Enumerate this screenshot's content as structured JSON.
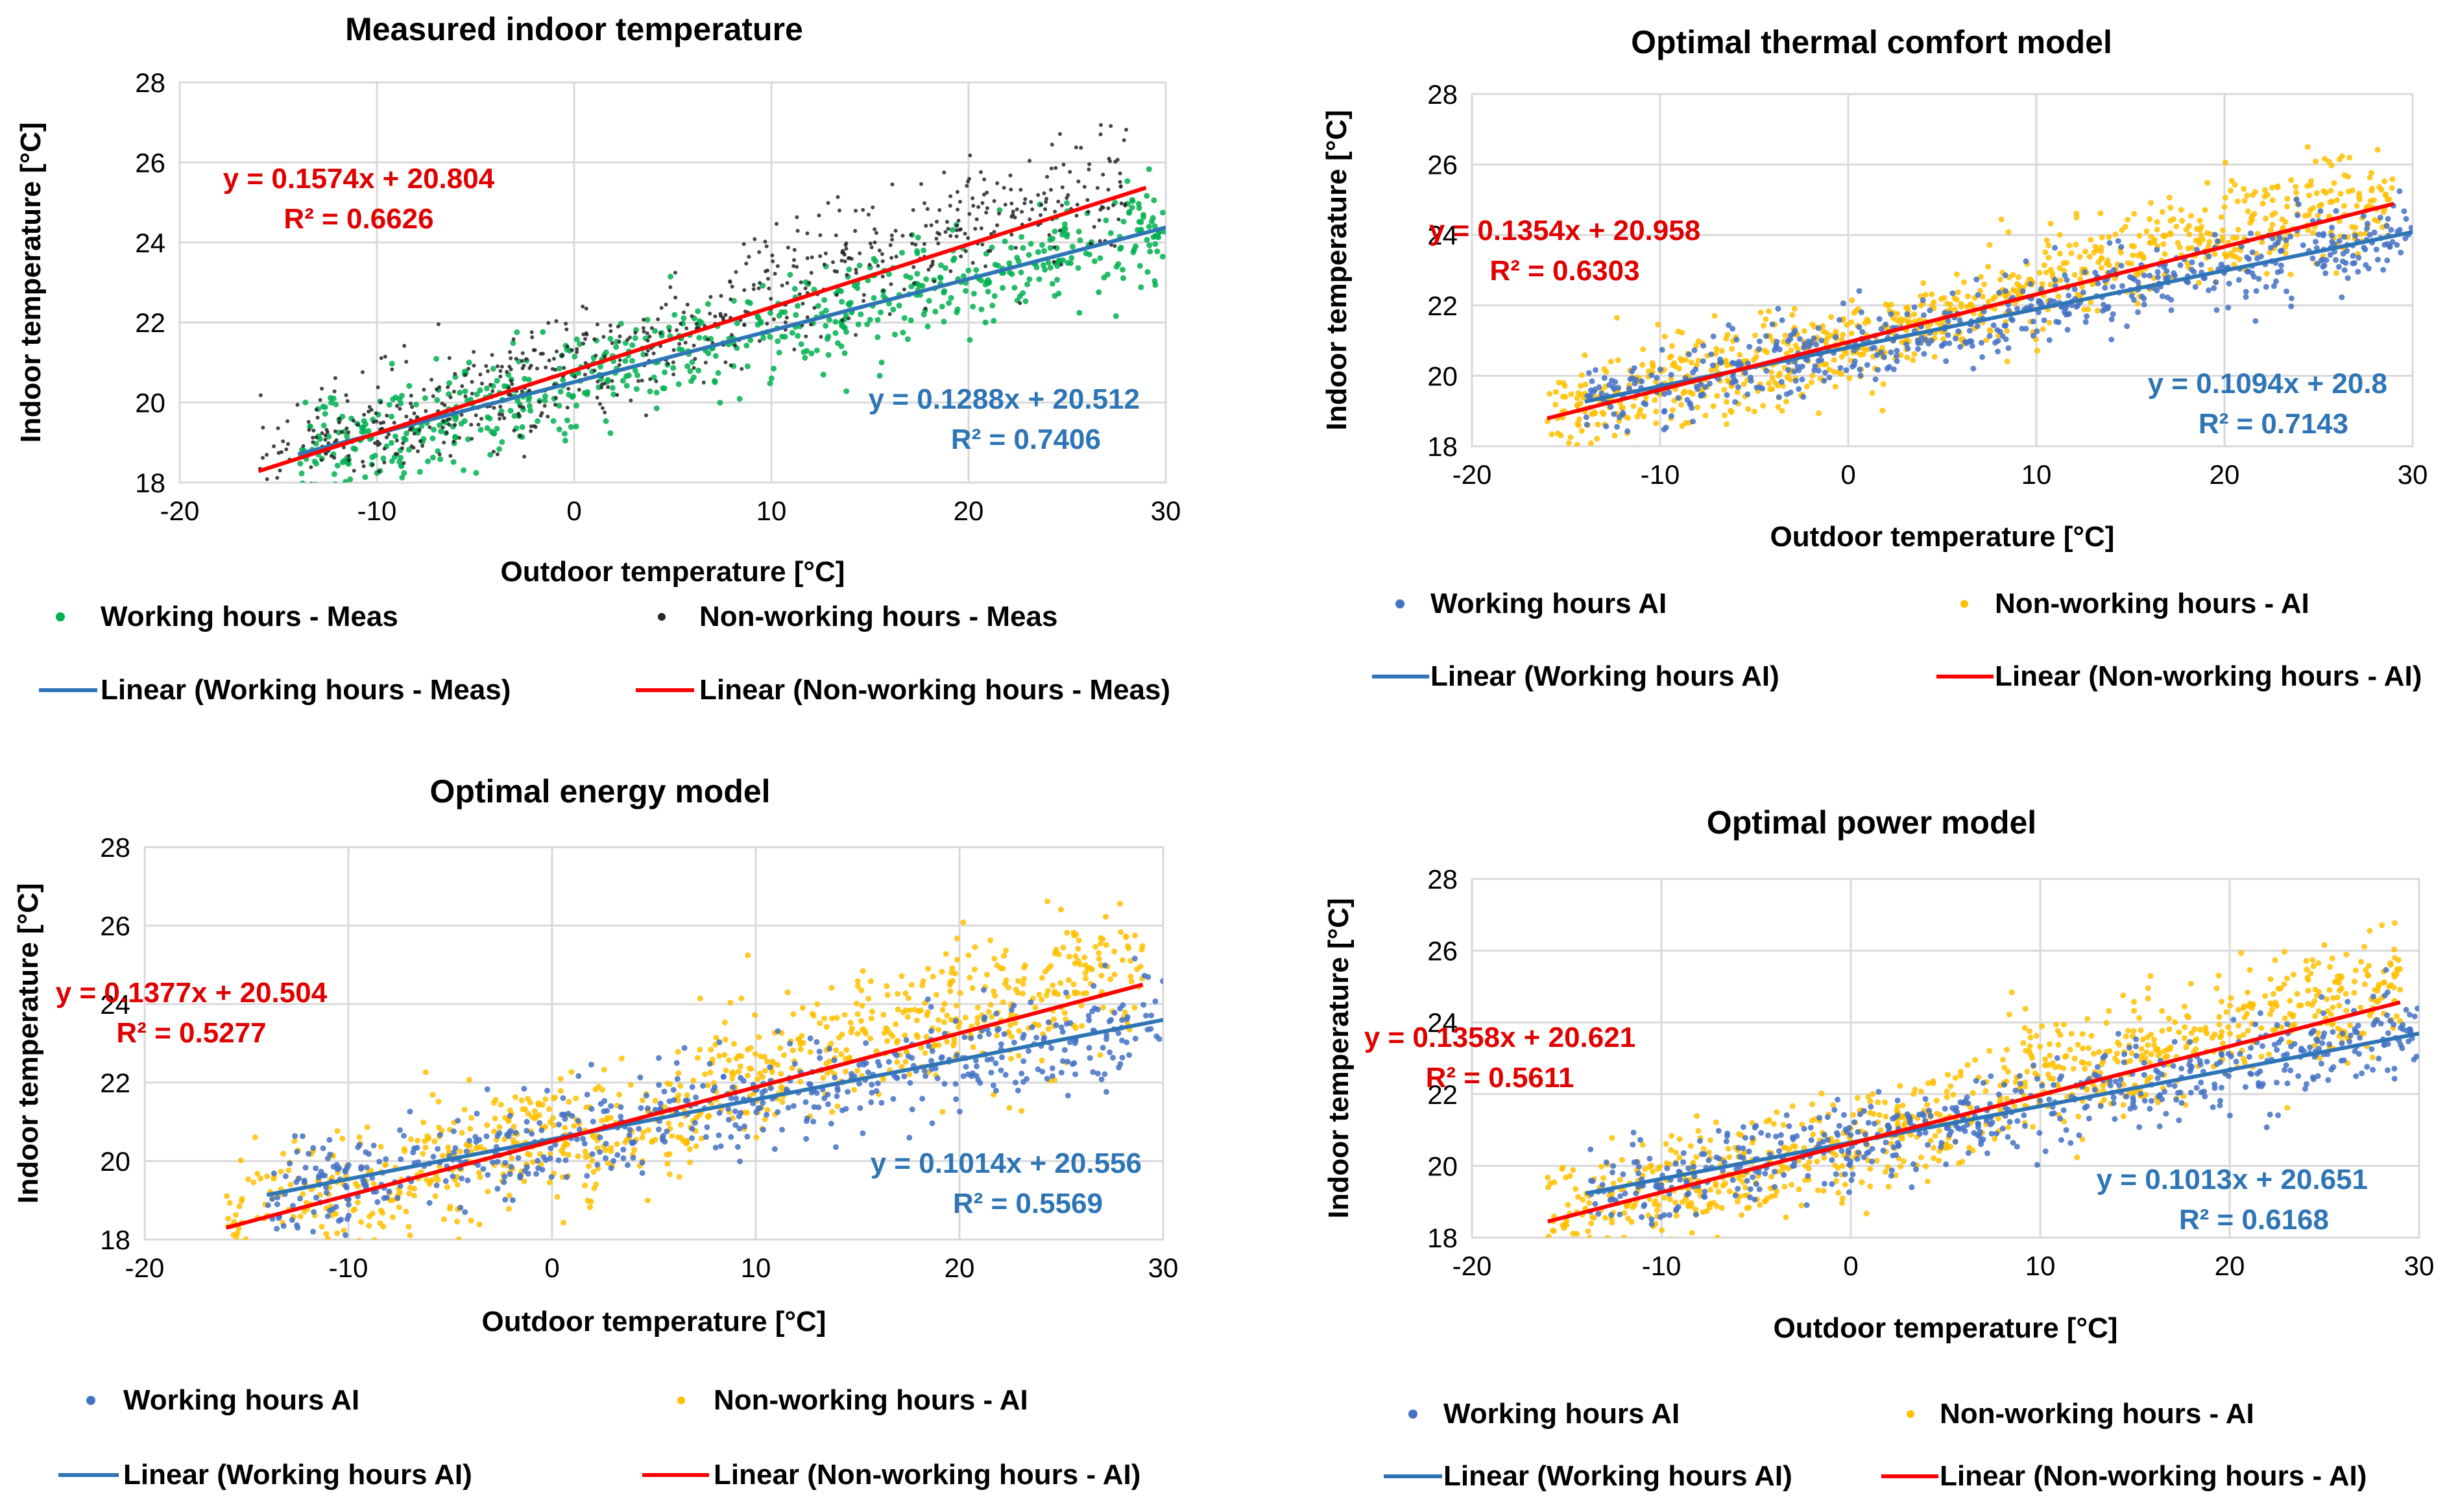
{
  "colors": {
    "meas_working": "#00b050",
    "meas_nonworking": "#262626",
    "ai_working": "#4472c4",
    "ai_nonworking": "#ffc000",
    "fit_working": "#2e75b6",
    "fit_nonworking": "#ff0000",
    "fit_working_text": "#2e75b6",
    "fit_nonworking_text": "#e00000"
  },
  "chart_data": [
    {
      "type": "scatter",
      "title": "Measured indoor temperature",
      "xlabel": "Outdoor temperature [°C]",
      "ylabel": "Indoor temperature [°C]",
      "xlim": [
        -20,
        30
      ],
      "ylim": [
        18,
        28
      ],
      "xticks": [
        "-20",
        "-10",
        "0",
        "10",
        "20",
        "30"
      ],
      "yticks": [
        "18",
        "20",
        "22",
        "24",
        "26",
        "28"
      ],
      "grid": true,
      "series": [
        {
          "name": "Working hours - Meas",
          "kind": "points",
          "color_key": "meas_working",
          "x_range": [
            -14,
            30
          ],
          "slope": 0.1288,
          "intercept": 20.512,
          "spread": 0.9,
          "n": 700
        },
        {
          "name": "Non-working hours - Meas",
          "kind": "points",
          "color_key": "meas_nonworking",
          "x_range": [
            -16,
            28
          ],
          "slope": 0.1574,
          "intercept": 20.804,
          "spread": 1.1,
          "n": 700
        },
        {
          "name": "Linear (Working hours - Meas)",
          "kind": "line",
          "color_key": "fit_working",
          "slope": 0.1288,
          "intercept": 20.512,
          "x_range": [
            -14,
            30
          ]
        },
        {
          "name": "Linear (Non-working hours - Meas)",
          "kind": "line",
          "color_key": "fit_nonworking",
          "slope": 0.1574,
          "intercept": 20.804,
          "x_range": [
            -16,
            29
          ]
        }
      ],
      "annotations": [
        {
          "line1": "y = 0.1574x + 20.804",
          "line2": "R² = 0.6626",
          "color_key": "fit_nonworking_text",
          "pos": "upper-left"
        },
        {
          "line1": "y = 0.1288x + 20.512",
          "line2": "R² = 0.7406",
          "color_key": "fit_working_text",
          "pos": "lower-right"
        }
      ],
      "legend": "bottom"
    },
    {
      "type": "scatter",
      "title": "Optimal thermal comfort model",
      "xlabel": "Outdoor temperature [°C]",
      "ylabel": "Indoor temperature [°C]",
      "xlim": [
        -20,
        30
      ],
      "ylim": [
        18,
        28
      ],
      "xticks": [
        "-20",
        "-10",
        "0",
        "10",
        "20",
        "30"
      ],
      "yticks": [
        "18",
        "20",
        "22",
        "24",
        "26",
        "28"
      ],
      "grid": true,
      "series": [
        {
          "name": "Working hours AI",
          "kind": "points",
          "color_key": "ai_working",
          "x_range": [
            -14,
            30
          ],
          "slope": 0.1094,
          "intercept": 20.8,
          "spread": 0.8,
          "n": 600
        },
        {
          "name": "Non-working hours - AI",
          "kind": "points",
          "color_key": "ai_nonworking",
          "x_range": [
            -16,
            29
          ],
          "slope": 0.1354,
          "intercept": 20.958,
          "spread": 0.9,
          "n": 900
        },
        {
          "name": "Linear (Working hours AI)",
          "kind": "line",
          "color_key": "fit_working",
          "slope": 0.1094,
          "intercept": 20.8,
          "x_range": [
            -14,
            30
          ]
        },
        {
          "name": "Linear (Non-working hours - AI)",
          "kind": "line",
          "color_key": "fit_nonworking",
          "slope": 0.1354,
          "intercept": 20.958,
          "x_range": [
            -16,
            29
          ]
        }
      ],
      "annotations": [
        {
          "line1": "y = 0.1354x + 20.958",
          "line2": "R² = 0.6303",
          "color_key": "fit_nonworking_text",
          "pos": "upper-left"
        },
        {
          "line1": "y = 0.1094x + 20.8",
          "line2": "R² = 0.7143",
          "color_key": "fit_working_text",
          "pos": "lower-right"
        }
      ],
      "legend": "bottom"
    },
    {
      "type": "scatter",
      "title": "Optimal energy model",
      "xlabel": "Outdoor temperature [°C]",
      "ylabel": "Indoor temperature [°C]",
      "xlim": [
        -20,
        30
      ],
      "ylim": [
        18,
        28
      ],
      "xticks": [
        "-20",
        "-10",
        "0",
        "10",
        "20",
        "30"
      ],
      "yticks": [
        "18",
        "20",
        "22",
        "24",
        "26",
        "28"
      ],
      "grid": true,
      "series": [
        {
          "name": "Working hours AI",
          "kind": "points",
          "color_key": "ai_working",
          "x_range": [
            -14,
            30
          ],
          "slope": 0.1014,
          "intercept": 20.556,
          "spread": 0.9,
          "n": 600
        },
        {
          "name": "Non-working hours - AI",
          "kind": "points",
          "color_key": "ai_nonworking",
          "x_range": [
            -16,
            29
          ],
          "slope": 0.1377,
          "intercept": 20.504,
          "spread": 1.2,
          "n": 900
        },
        {
          "name": "Linear (Working hours AI)",
          "kind": "line",
          "color_key": "fit_working",
          "slope": 0.1014,
          "intercept": 20.556,
          "x_range": [
            -14,
            30
          ]
        },
        {
          "name": "Linear (Non-working hours - AI)",
          "kind": "line",
          "color_key": "fit_nonworking",
          "slope": 0.1377,
          "intercept": 20.504,
          "x_range": [
            -16,
            29
          ]
        }
      ],
      "annotations": [
        {
          "line1": "y = 0.1377x + 20.504",
          "line2": "R² = 0.5277",
          "color_key": "fit_nonworking_text",
          "pos": "upper-left"
        },
        {
          "line1": "y = 0.1014x + 20.556",
          "line2": "R² = 0.5569",
          "color_key": "fit_working_text",
          "pos": "lower-right"
        }
      ],
      "legend": "bottom"
    },
    {
      "type": "scatter",
      "title": "Optimal power model",
      "xlabel": "Outdoor temperature [°C]",
      "ylabel": "Indoor temperature [°C]",
      "xlim": [
        -20,
        30
      ],
      "ylim": [
        18,
        28
      ],
      "xticks": [
        "-20",
        "-10",
        "0",
        "10",
        "20",
        "30"
      ],
      "yticks": [
        "18",
        "20",
        "22",
        "24",
        "26",
        "28"
      ],
      "grid": true,
      "series": [
        {
          "name": "Working hours AI",
          "kind": "points",
          "color_key": "ai_working",
          "x_range": [
            -14,
            30
          ],
          "slope": 0.1013,
          "intercept": 20.651,
          "spread": 0.9,
          "n": 600
        },
        {
          "name": "Non-working hours - AI",
          "kind": "points",
          "color_key": "ai_nonworking",
          "x_range": [
            -16,
            29
          ],
          "slope": 0.1358,
          "intercept": 20.621,
          "spread": 1.1,
          "n": 900
        },
        {
          "name": "Linear (Working hours AI)",
          "kind": "line",
          "color_key": "fit_working",
          "slope": 0.1013,
          "intercept": 20.651,
          "x_range": [
            -14,
            30
          ]
        },
        {
          "name": "Linear (Non-working hours - AI)",
          "kind": "line",
          "color_key": "fit_nonworking",
          "slope": 0.1358,
          "intercept": 20.621,
          "x_range": [
            -16,
            29
          ]
        }
      ],
      "annotations": [
        {
          "line1": "y = 0.1358x + 20.621",
          "line2": "R² = 0.5611",
          "color_key": "fit_nonworking_text",
          "pos": "upper-left"
        },
        {
          "line1": "y = 0.1013x + 20.651",
          "line2": "R² = 0.6168",
          "color_key": "fit_working_text",
          "pos": "lower-right"
        }
      ],
      "legend": "bottom"
    }
  ]
}
